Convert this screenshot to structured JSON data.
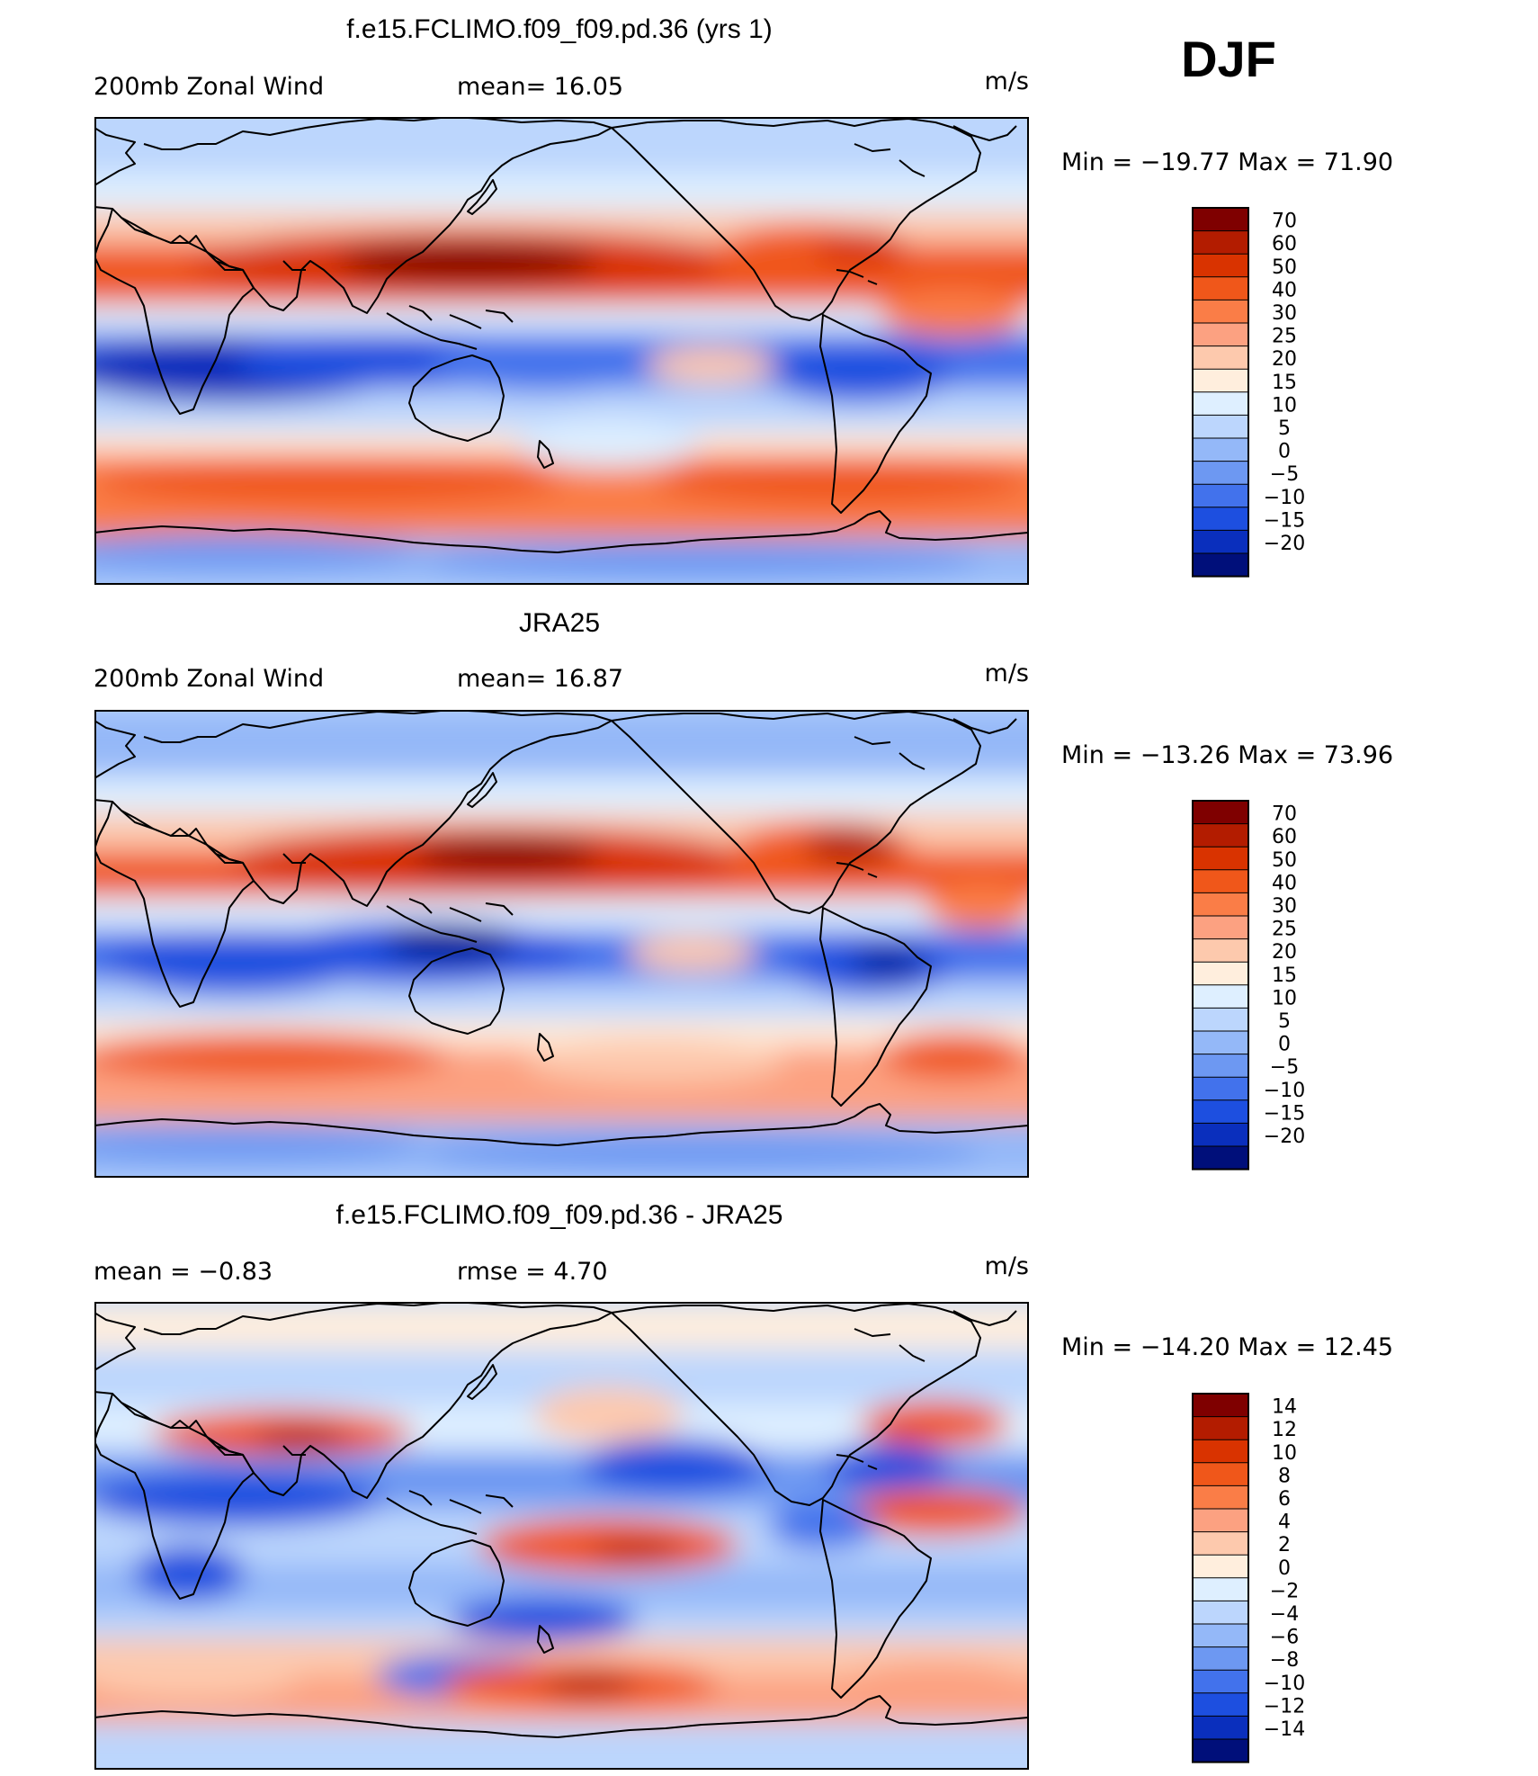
{
  "season": "DJF",
  "panels": [
    {
      "title": "f.e15.FCLIMO.f09_f09.pd.36 (yrs 1)",
      "left_text": "200mb  Zonal  Wind",
      "mid_text": "mean=   16.05",
      "units": "m/s",
      "minmax": "Min  =  −19.77  Max  =    71.90",
      "colorbar": [
        "70",
        "60",
        "50",
        "40",
        "30",
        "25",
        "20",
        "15",
        "10",
        "5",
        "0",
        "−5",
        "−10",
        "−15",
        "−20"
      ]
    },
    {
      "title": "JRA25",
      "left_text": "200mb  Zonal  Wind",
      "mid_text": "mean=   16.87",
      "units": "m/s",
      "minmax": "Min  =  −13.26  Max  =    73.96",
      "colorbar": [
        "70",
        "60",
        "50",
        "40",
        "30",
        "25",
        "20",
        "15",
        "10",
        "5",
        "0",
        "−5",
        "−10",
        "−15",
        "−20"
      ]
    },
    {
      "title": "f.e15.FCLIMO.f09_f09.pd.36 - JRA25",
      "left_text": "mean  =    −0.83",
      "mid_text": "rmse  =     4.70",
      "units": "m/s",
      "minmax": "Min  =  −14.20  Max  =    12.45",
      "colorbar": [
        "14",
        "12",
        "10",
        "8",
        "6",
        "4",
        "2",
        "0",
        "−2",
        "−4",
        "−6",
        "−8",
        "−10",
        "−12",
        "−14"
      ]
    }
  ],
  "colors": {
    "palette": [
      "#7f0000",
      "#b31c00",
      "#d93300",
      "#f0571a",
      "#fa7d47",
      "#fca181",
      "#fdc9ad",
      "#ffeedd",
      "#deefff",
      "#bcd6fd",
      "#94b8f8",
      "#6d98f2",
      "#4272ec",
      "#1d4fe0",
      "#0a2fbd",
      "#001f96",
      "#000f7a"
    ]
  },
  "chart_data": [
    {
      "type": "heatmap",
      "title": "f.e15.FCLIMO.f09_f09.pd.36 (yrs 1)",
      "subtitle": "200mb Zonal Wind",
      "units": "m/s",
      "mean": 16.05,
      "min": -19.77,
      "max": 71.9,
      "levels": [
        -20,
        -15,
        -10,
        -5,
        0,
        5,
        10,
        15,
        20,
        25,
        30,
        40,
        50,
        60,
        70
      ]
    },
    {
      "type": "heatmap",
      "title": "JRA25",
      "subtitle": "200mb Zonal Wind",
      "units": "m/s",
      "mean": 16.87,
      "min": -13.26,
      "max": 73.96,
      "levels": [
        -20,
        -15,
        -10,
        -5,
        0,
        5,
        10,
        15,
        20,
        25,
        30,
        40,
        50,
        60,
        70
      ]
    },
    {
      "type": "heatmap",
      "title": "f.e15.FCLIMO.f09_f09.pd.36 - JRA25",
      "units": "m/s",
      "mean": -0.83,
      "rmse": 4.7,
      "min": -14.2,
      "max": 12.45,
      "levels": [
        -14,
        -12,
        -10,
        -8,
        -6,
        -4,
        -2,
        0,
        2,
        4,
        6,
        8,
        10,
        12,
        14
      ]
    }
  ]
}
